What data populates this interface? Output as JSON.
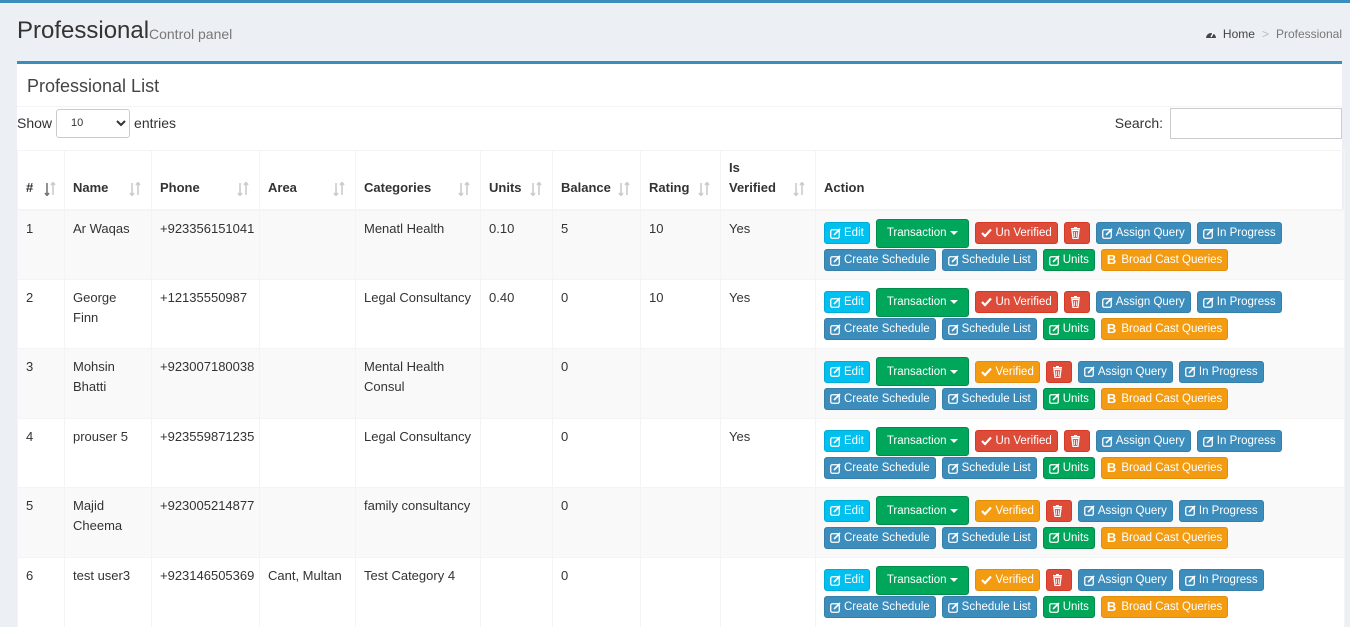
{
  "header": {
    "title": "Professional",
    "subtitle": "Control panel",
    "breadcrumb": {
      "home": "Home",
      "current": "Professional"
    }
  },
  "box": {
    "title": "Professional List"
  },
  "length_menu": {
    "show": "Show",
    "value": "10",
    "entries": "entries"
  },
  "search": {
    "label": "Search:",
    "value": ""
  },
  "columns": [
    "#",
    "Name",
    "Phone",
    "Area",
    "Categories",
    "Units",
    "Balance",
    "Rating",
    "Is Verified",
    "Action"
  ],
  "buttons": {
    "edit": "Edit",
    "transaction": "Transaction",
    "un_verified": "Un Verified",
    "verified": "Verified",
    "assign_query": "Assign Query",
    "in_progress": "In Progress",
    "create_schedule": "Create Schedule",
    "schedule_list": "Schedule List",
    "units": "Units",
    "broadcast": "Broad Cast Queries"
  },
  "rows": [
    {
      "num": "1",
      "name": "Ar Waqas",
      "phone": "+923356151041",
      "area": "",
      "category": "Menatl Health",
      "units": "0.10",
      "balance": "5",
      "rating": "10",
      "verified": "Yes",
      "is_verified": true
    },
    {
      "num": "2",
      "name": "George Finn",
      "phone": "+12135550987",
      "area": "",
      "category": "Legal Consultancy",
      "units": "0.40",
      "balance": "0",
      "rating": "10",
      "verified": "Yes",
      "is_verified": true
    },
    {
      "num": "3",
      "name": "Mohsin Bhatti",
      "phone": "+923007180038",
      "area": "",
      "category": "Mental Health Consul",
      "units": "",
      "balance": "0",
      "rating": "",
      "verified": "",
      "is_verified": false
    },
    {
      "num": "4",
      "name": "prouser 5",
      "phone": "+923559871235",
      "area": "",
      "category": "Legal Consultancy",
      "units": "",
      "balance": "0",
      "rating": "",
      "verified": "Yes",
      "is_verified": true
    },
    {
      "num": "5",
      "name": "Majid Cheema",
      "phone": "+923005214877",
      "area": "",
      "category": "family consultancy",
      "units": "",
      "balance": "0",
      "rating": "",
      "verified": "",
      "is_verified": false
    },
    {
      "num": "6",
      "name": "test user3",
      "phone": "+923146505369",
      "area": "Cant, Multan",
      "category": "Test Category 4",
      "units": "",
      "balance": "0",
      "rating": "",
      "verified": "",
      "is_verified": false
    }
  ],
  "colors": {
    "primary": "#3c8dbc",
    "info": "#00c0ef",
    "success": "#00a65a",
    "danger": "#dd4b39",
    "warning": "#f39c12"
  }
}
